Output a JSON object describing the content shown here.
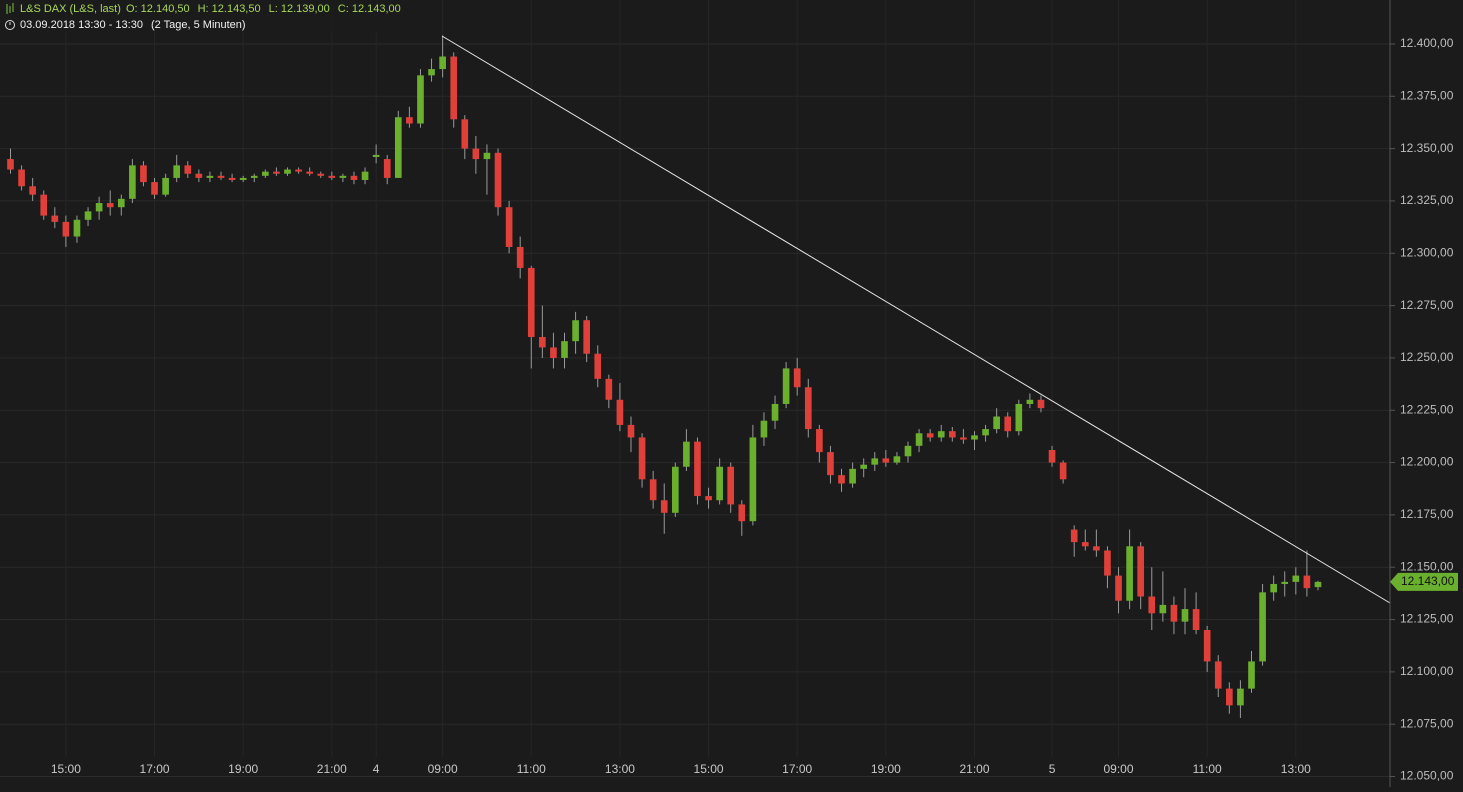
{
  "chart_data": {
    "type": "candlestick",
    "title": "L&S DAX (L&S, last)",
    "ohlc_labels": [
      "O: 12.140,50",
      "H: 12.143,50",
      "L: 12.139,00",
      "C: 12.143,00"
    ],
    "subtitle": "03.09.2018 13:30 - 13:30",
    "period": "(2 Tage, 5 Minuten)",
    "categories": [
      null,
      null,
      null,
      null,
      null,
      "15:00",
      null,
      null,
      null,
      null,
      null,
      null,
      null,
      "17:00",
      null,
      null,
      null,
      null,
      null,
      null,
      null,
      "19:00",
      null,
      null,
      null,
      null,
      null,
      null,
      null,
      "21:00",
      null,
      null,
      null,
      "4",
      null,
      null,
      null,
      null,
      null,
      "09:00",
      null,
      null,
      null,
      null,
      null,
      null,
      null,
      "11:00",
      null,
      null,
      null,
      null,
      null,
      null,
      null,
      "13:00",
      null,
      null,
      null,
      null,
      null,
      null,
      null,
      "15:00",
      null,
      null,
      null,
      null,
      null,
      null,
      null,
      "17:00",
      null,
      null,
      null,
      null,
      null,
      null,
      null,
      "19:00",
      null,
      null,
      null,
      null,
      null,
      null,
      null,
      "21:00",
      null,
      null,
      null,
      null,
      null,
      null,
      "5",
      null,
      null,
      null,
      null,
      null,
      "09:00",
      null,
      null,
      null,
      null,
      null,
      null,
      null,
      "11:00",
      null,
      null,
      null,
      null,
      null,
      null,
      null,
      "13:00",
      null,
      null,
      null,
      null,
      null,
      null,
      null,
      null
    ],
    "open": [
      12345,
      12340,
      12332,
      12328,
      12318,
      12315,
      12308,
      12316,
      12320,
      12324,
      12322,
      12326,
      12342,
      12334,
      12328,
      12336,
      12342,
      12338,
      12336,
      12337,
      12336,
      12335,
      12336,
      12337,
      12339,
      12338,
      12340,
      12339,
      12338,
      12337,
      12336,
      12337,
      12335,
      12346,
      12345,
      12336,
      12365,
      12362,
      12385,
      12388,
      12394,
      12364,
      12350,
      12345,
      12348,
      12322,
      12303,
      12293,
      12260,
      12255,
      12250,
      12258,
      12268,
      12252,
      12240,
      12230,
      12218,
      12212,
      12192,
      12182,
      12176,
      12198,
      12210,
      12184,
      12182,
      12198,
      12180,
      12172,
      12212,
      12220,
      12228,
      12245,
      12236,
      12216,
      12205,
      12194,
      12190,
      12197,
      12199,
      12202,
      12200,
      12203,
      12208,
      12214,
      12212,
      12215,
      12212,
      12211,
      12213,
      12216,
      12222,
      12215,
      12228,
      12230,
      12206,
      12200,
      12168,
      12162,
      12160,
      12158,
      12146,
      12134,
      12160,
      12136,
      12128,
      12132,
      12124,
      12130,
      12120,
      12105,
      12092,
      12084,
      12092,
      12105,
      12138,
      12142,
      12143,
      12146,
      12140.5,
      null,
      null,
      null,
      null,
      null,
      null
    ],
    "high": [
      12350,
      12342,
      12336,
      12330,
      12322,
      12318,
      12318,
      12322,
      12327,
      12330,
      12328,
      12345,
      12344,
      12336,
      12338,
      12347,
      12344,
      12340,
      12339,
      12339,
      12338,
      12337,
      12338,
      12340,
      12341,
      12341,
      12341,
      12341,
      12339,
      12339,
      12338,
      12339,
      12341,
      12352,
      12347,
      12368,
      12370,
      12388,
      12393,
      12404,
      12396,
      12366,
      12356,
      12352,
      12350,
      12325,
      12308,
      12294,
      12275,
      12262,
      12262,
      12272,
      12270,
      12256,
      12242,
      12238,
      12222,
      12214,
      12196,
      12190,
      12200,
      12216,
      12212,
      12188,
      12202,
      12200,
      12182,
      12218,
      12224,
      12232,
      12248,
      12250,
      12240,
      12218,
      12208,
      12197,
      12200,
      12202,
      12205,
      12206,
      12205,
      12210,
      12216,
      12216,
      12218,
      12217,
      12216,
      12215,
      12218,
      12226,
      12224,
      12230,
      12233,
      12232,
      12208,
      12201,
      12170,
      12168,
      12168,
      12160,
      12150,
      12168,
      12162,
      12150,
      12148,
      12136,
      12140,
      12138,
      12122,
      12108,
      12095,
      12096,
      12110,
      12142,
      12146,
      12148,
      12150,
      12158,
      12143.5,
      null,
      null,
      null,
      null,
      null,
      null
    ],
    "low": [
      12338,
      12330,
      12325,
      12316,
      12312,
      12303,
      12305,
      12313,
      12316,
      12318,
      12318,
      12324,
      12332,
      12326,
      12327,
      12334,
      12336,
      12334,
      12334,
      12335,
      12334,
      12334,
      12334,
      12336,
      12337,
      12337,
      12338,
      12337,
      12336,
      12335,
      12334,
      12333,
      12333,
      12343,
      12333,
      12336,
      12360,
      12360,
      12382,
      12384,
      12360,
      12345,
      12338,
      12328,
      12318,
      12300,
      12288,
      12245,
      12250,
      12245,
      12245,
      12252,
      12248,
      12236,
      12226,
      12215,
      12205,
      12188,
      12178,
      12166,
      12174,
      12196,
      12180,
      12178,
      12180,
      12176,
      12165,
      12170,
      12208,
      12216,
      12226,
      12232,
      12212,
      12200,
      12190,
      12186,
      12188,
      12193,
      12196,
      12198,
      12199,
      12200,
      12205,
      12210,
      12210,
      12210,
      12209,
      12206,
      12210,
      12214,
      12212,
      12213,
      12226,
      12224,
      12198,
      12190,
      12155,
      12158,
      12155,
      12140,
      12128,
      12130,
      12130,
      12120,
      12124,
      12118,
      12118,
      12118,
      12100,
      12088,
      12080,
      12078,
      12090,
      12103,
      12134,
      12136,
      12137,
      12136,
      12139,
      null,
      null,
      null,
      null,
      null,
      null
    ],
    "close": [
      12340,
      12332,
      12328,
      12318,
      12315,
      12308,
      12316,
      12320,
      12324,
      12322,
      12326,
      12342,
      12334,
      12328,
      12336,
      12342,
      12338,
      12336,
      12337,
      12336,
      12335,
      12336,
      12337,
      12339,
      12338,
      12340,
      12339,
      12338,
      12337,
      12336,
      12337,
      12335,
      12339,
      12347,
      12336,
      12365,
      12362,
      12385,
      12388,
      12394,
      12364,
      12350,
      12345,
      12348,
      12322,
      12303,
      12293,
      12260,
      12255,
      12250,
      12258,
      12268,
      12252,
      12240,
      12230,
      12218,
      12212,
      12192,
      12182,
      12176,
      12198,
      12210,
      12184,
      12182,
      12198,
      12180,
      12172,
      12212,
      12220,
      12228,
      12245,
      12236,
      12216,
      12205,
      12194,
      12190,
      12197,
      12199,
      12202,
      12200,
      12203,
      12208,
      12214,
      12212,
      12215,
      12212,
      12211,
      12213,
      12216,
      12222,
      12215,
      12228,
      12230,
      12226,
      12200,
      12192,
      12162,
      12160,
      12158,
      12146,
      12134,
      12160,
      12136,
      12128,
      12132,
      12124,
      12130,
      12120,
      12105,
      12092,
      12084,
      12092,
      12105,
      12138,
      12142,
      12143,
      12146,
      12140,
      12143,
      null,
      null,
      null,
      null,
      null,
      null
    ],
    "up_color": "#6ab02e",
    "down_color": "#e0403a",
    "wick_color": "#9a9a9a",
    "ylim": [
      12045,
      12421
    ],
    "yticks": [
      {
        "value": 12050,
        "label": "12.050,00"
      },
      {
        "value": 12075,
        "label": "12.075,00"
      },
      {
        "value": 12100,
        "label": "12.100,00"
      },
      {
        "value": 12125,
        "label": "12.125,00"
      },
      {
        "value": 12150,
        "label": "12.150,00"
      },
      {
        "value": 12175,
        "label": "12.175,00"
      },
      {
        "value": 12200,
        "label": "12.200,00"
      },
      {
        "value": 12225,
        "label": "12.225,00"
      },
      {
        "value": 12250,
        "label": "12.250,00"
      },
      {
        "value": 12275,
        "label": "12.275,00"
      },
      {
        "value": 12300,
        "label": "12.300,00"
      },
      {
        "value": 12325,
        "label": "12.325,00"
      },
      {
        "value": 12350,
        "label": "12.350,00"
      },
      {
        "value": 12375,
        "label": "12.375,00"
      },
      {
        "value": 12400,
        "label": "12.400,00"
      }
    ],
    "last_price": {
      "value": 12143,
      "label": "12.143,00"
    },
    "grid": true
  }
}
